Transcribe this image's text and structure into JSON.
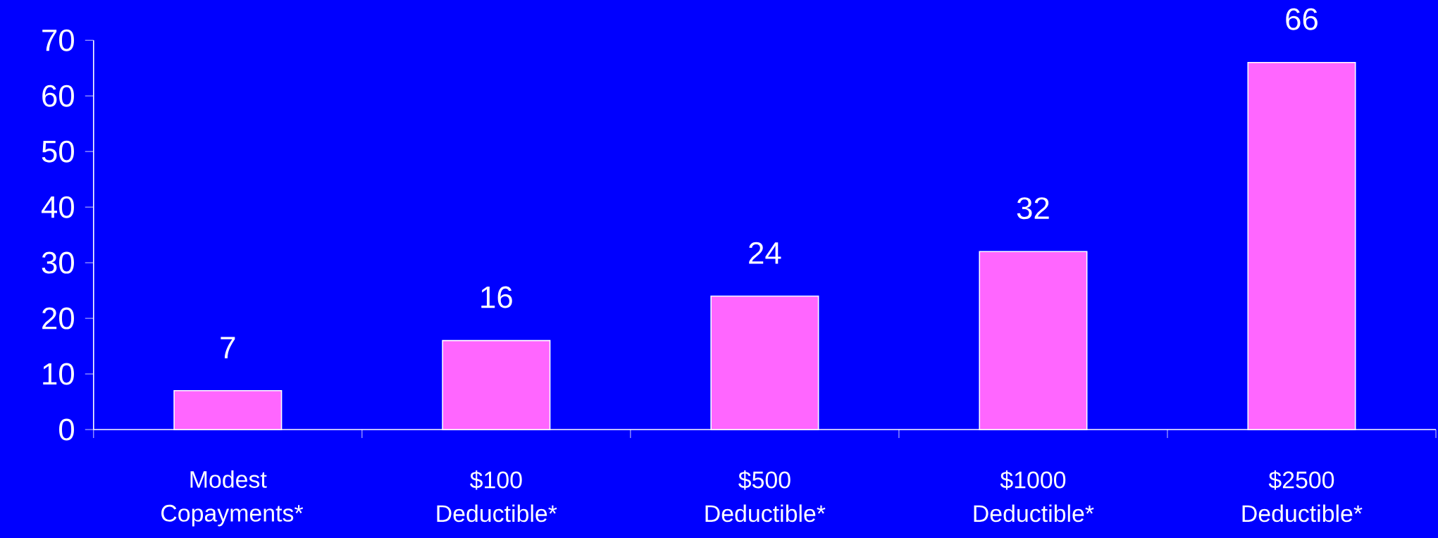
{
  "chart_data": {
    "type": "bar",
    "categories": [
      "Modest Copayments*",
      "$100 Deductible*",
      "$500 Deductible*",
      "$1000 Deductible*",
      "$2500 Deductible*"
    ],
    "values": [
      7,
      16,
      24,
      32,
      66
    ],
    "color": "#ff66ff",
    "ylim": [
      0,
      70
    ],
    "yticks": [
      0,
      10,
      20,
      30,
      40,
      50,
      60,
      70
    ],
    "data_labels": true,
    "grid": false
  }
}
